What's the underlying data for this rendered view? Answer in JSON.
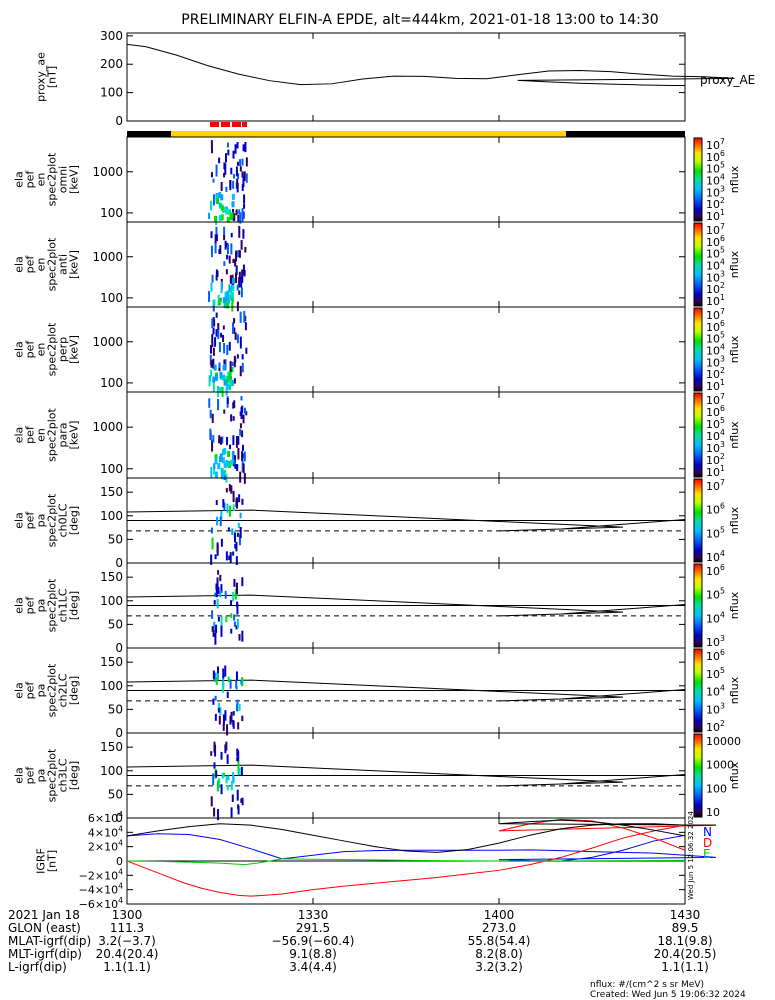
{
  "title": "PRELIMINARY ELFIN-A EPDE, alt=444km, 2021-01-18 13:00 to 14:30",
  "colors": {
    "spin_bar": "#000000",
    "science_bar": "#ffd400",
    "marker": "#ff0000",
    "north": "#0000ff",
    "down": "#ff0000",
    "east": "#00cc00",
    "total": "#000000"
  },
  "chart_data": [
    {
      "type": "line",
      "ylabel_lines": [
        "proxy_ae",
        "[nT]"
      ],
      "legend": "proxy_AE",
      "ylim": [
        0,
        310
      ],
      "yticks": [
        "0",
        "100",
        "200",
        "300"
      ],
      "series": [
        {
          "name": "proxy_AE",
          "x": [
            1300,
            1303,
            1308,
            1313,
            1318,
            1323,
            1328,
            1333,
            1338,
            1343,
            1348,
            1353,
            1358,
            1363,
            1368,
            1373,
            1378,
            1383,
            1388,
            1393,
            1398,
            1403,
            1408,
            1413,
            1418,
            1423,
            1428,
            1430
          ],
          "y": [
            270,
            262,
            232,
            195,
            165,
            142,
            128,
            131,
            148,
            158,
            157,
            150,
            149,
            163,
            176,
            178,
            174,
            165,
            158,
            156,
            150,
            143,
            138,
            133,
            130,
            127,
            125,
            125
          ]
        }
      ]
    },
    {
      "type": "heatmap",
      "ylabel_lines": [
        "ela",
        "pef",
        "en",
        "spec2plot",
        "omni",
        "[keV]"
      ],
      "yticks": [
        "100",
        "1000"
      ],
      "colorbar_ticks": [
        "10^7",
        "10^6",
        "10^5",
        "10^4",
        "10^3",
        "10^2",
        "10^1"
      ],
      "colorbar_label": "nflux"
    },
    {
      "type": "heatmap",
      "ylabel_lines": [
        "ela",
        "pef",
        "en",
        "spec2plot",
        "anti",
        "[keV]"
      ],
      "yticks": [
        "100",
        "1000"
      ],
      "colorbar_ticks": [
        "10^7",
        "10^6",
        "10^5",
        "10^4",
        "10^3",
        "10^2",
        "10^1"
      ],
      "colorbar_label": "nflux"
    },
    {
      "type": "heatmap",
      "ylabel_lines": [
        "ela",
        "pef",
        "en",
        "spec2plot",
        "perp",
        "[keV]"
      ],
      "yticks": [
        "100",
        "1000"
      ],
      "colorbar_ticks": [
        "10^7",
        "10^6",
        "10^5",
        "10^4",
        "10^3",
        "10^2",
        "10^1"
      ],
      "colorbar_label": "nflux"
    },
    {
      "type": "heatmap",
      "ylabel_lines": [
        "ela",
        "pef",
        "en",
        "spec2plot",
        "para",
        "[keV]"
      ],
      "yticks": [
        "100",
        "1000"
      ],
      "colorbar_ticks": [
        "10^7",
        "10^6",
        "10^5",
        "10^4",
        "10^3",
        "10^2",
        "10^1"
      ],
      "colorbar_label": "nflux"
    },
    {
      "type": "heatmap",
      "ylabel_lines": [
        "ela",
        "pef",
        "pa",
        "spec2plot",
        "ch0LC",
        "[deg]"
      ],
      "yticks": [
        "0",
        "50",
        "100",
        "150"
      ],
      "colorbar_ticks": [
        "10^7",
        "10^6",
        "10^5",
        "10^4"
      ],
      "colorbar_label": "nflux"
    },
    {
      "type": "heatmap",
      "ylabel_lines": [
        "ela",
        "pef",
        "pa",
        "spec2plot",
        "ch1LC",
        "[deg]"
      ],
      "yticks": [
        "0",
        "50",
        "100",
        "150"
      ],
      "colorbar_ticks": [
        "10^6",
        "10^5",
        "10^4",
        "10^3"
      ],
      "colorbar_label": "nflux"
    },
    {
      "type": "heatmap",
      "ylabel_lines": [
        "ela",
        "pef",
        "pa",
        "spec2plot",
        "ch2LC",
        "[deg]"
      ],
      "yticks": [
        "0",
        "50",
        "100",
        "150"
      ],
      "colorbar_ticks": [
        "10^6",
        "10^5",
        "10^4",
        "10^3",
        "10^2"
      ],
      "colorbar_label": "nflux"
    },
    {
      "type": "heatmap",
      "ylabel_lines": [
        "ela",
        "pef",
        "pa",
        "spec2plot",
        "ch3LC",
        "[deg]"
      ],
      "yticks": [
        "0",
        "50",
        "100",
        "150"
      ],
      "colorbar_ticks": [
        "10000",
        "1000",
        "100",
        "10"
      ],
      "colorbar_label": "nflux"
    },
    {
      "type": "line",
      "ylabel_lines": [
        "IGRF",
        "[nT]"
      ],
      "ylim": [
        -60000,
        60000
      ],
      "yticks": [
        "6×10^4",
        "4×10^4",
        "2×10^4",
        "0",
        "−2×10^4",
        "−4×10^4",
        "−6×10^4"
      ],
      "legend": [
        "N",
        "D",
        "E"
      ],
      "series": [
        {
          "name": "N",
          "x": [
            1300,
            1305,
            1310,
            1315,
            1320,
            1325,
            1330,
            1335,
            1340,
            1345,
            1350,
            1355,
            1360,
            1365,
            1370,
            1375,
            1380,
            1385,
            1390,
            1395,
            1400,
            1405,
            1410,
            1415,
            1420,
            1425,
            1430
          ],
          "y": [
            35000,
            38000,
            37000,
            30000,
            17000,
            3000,
            8000,
            13000,
            14500,
            15000,
            15000,
            15000,
            15000,
            15500,
            14500,
            13000,
            12000,
            11000,
            8000,
            5000,
            2000,
            500,
            0,
            5000,
            15000,
            28000,
            36000
          ]
        },
        {
          "name": "D",
          "x": [
            1300,
            1303,
            1306,
            1309,
            1312,
            1315,
            1318,
            1320,
            1322,
            1325,
            1330,
            1335,
            1340,
            1345,
            1350,
            1355,
            1360,
            1365,
            1370,
            1375,
            1380,
            1385,
            1390,
            1395,
            1400,
            1405,
            1410,
            1415,
            1420,
            1425,
            1430
          ],
          "y": [
            0,
            -10000,
            -20000,
            -30000,
            -38000,
            -44000,
            -48000,
            -49000,
            -48000,
            -46000,
            -40000,
            -35000,
            -31000,
            -27000,
            -23000,
            -18000,
            -13000,
            -5000,
            5000,
            18000,
            32000,
            42000,
            50000,
            50000,
            42000,
            52000,
            58000,
            56000,
            46000,
            32000,
            15000
          ]
        },
        {
          "name": "E",
          "x": [
            1300,
            1305,
            1310,
            1315,
            1319,
            1321,
            1325,
            1330,
            1340,
            1350,
            1360,
            1370,
            1380,
            1390,
            1400,
            1410,
            1420,
            1430
          ],
          "y": [
            0,
            -500,
            -1500,
            -3000,
            -5000,
            -3000,
            3000,
            2500,
            1500,
            500,
            0,
            -300,
            -500,
            -500,
            -400,
            0,
            500,
            1000
          ]
        },
        {
          "name": "total",
          "x": [
            1300,
            1305,
            1310,
            1315,
            1320,
            1325,
            1330,
            1335,
            1340,
            1345,
            1350,
            1355,
            1360,
            1365,
            1370,
            1375,
            1380,
            1385,
            1390,
            1395,
            1400,
            1405,
            1410,
            1415,
            1420,
            1425,
            1430
          ],
          "y": [
            35000,
            42000,
            48000,
            52000,
            50000,
            44000,
            36000,
            28000,
            20000,
            14000,
            12000,
            16000,
            25000,
            36000,
            45000,
            50000,
            52000,
            52000,
            50000,
            50000,
            52000,
            55000,
            57000,
            55000,
            50000,
            43000,
            35000
          ]
        }
      ]
    }
  ],
  "footer": {
    "label_col": [
      "2021 Jan 18",
      "GLON (east)",
      "MLAT-igrf(dip)",
      "MLT-igrf(dip)",
      "L-igrf(dip)"
    ],
    "columns": [
      {
        "x": 1300,
        "values": [
          "1300",
          "111.3",
          "3.2(−3.7)",
          "20.4(20.4)",
          "1.1(1.1)"
        ]
      },
      {
        "x": 1330,
        "values": [
          "1330",
          "291.5",
          "−56.9(−60.4)",
          "9.1(8.8)",
          "3.4(4.4)"
        ]
      },
      {
        "x": 1400,
        "values": [
          "1400",
          "273.0",
          "55.8(54.4)",
          "8.2(8.0)",
          "3.2(3.2)"
        ]
      },
      {
        "x": 1430,
        "values": [
          "1430",
          "89.5",
          "18.1(9.8)",
          "20.4(20.5)",
          "1.1(1.1)"
        ]
      }
    ],
    "units_note": "nflux: #/(cm^2 s sr MeV)",
    "created": "Created: Wed Jun  5 19:06:32 2024",
    "side_stamp": "Wed Jun  5 12:06:32 2024"
  }
}
